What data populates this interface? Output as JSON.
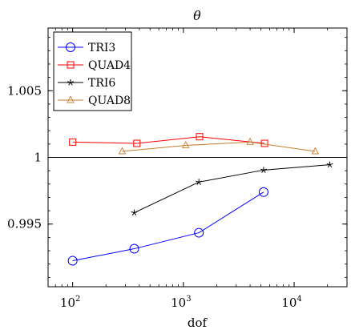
{
  "chart_data": {
    "type": "line",
    "title": "θ",
    "xlabel": "dof",
    "ylabel": "",
    "x_scale": "log",
    "xlim": [
      60,
      30000
    ],
    "ylim": [
      0.9903,
      1.0097
    ],
    "x_ticks": [
      {
        "value": 100,
        "base": "10",
        "exp": "2"
      },
      {
        "value": 1000,
        "base": "10",
        "exp": "3"
      },
      {
        "value": 10000,
        "base": "10",
        "exp": "4"
      }
    ],
    "y_ticks": [
      {
        "value": 0.995,
        "label": "0.995"
      },
      {
        "value": 1.0,
        "label": "1"
      },
      {
        "value": 1.005,
        "label": "1.005"
      }
    ],
    "reference_line": 1.0,
    "grid": false,
    "legend_position": "top-left",
    "series": [
      {
        "name": "TRI3",
        "color": "#0000ff",
        "marker": "circle",
        "x": [
          100,
          360,
          1380,
          5300
        ],
        "y": [
          0.99225,
          0.99315,
          0.99435,
          0.9974
        ]
      },
      {
        "name": "QUAD4",
        "color": "#ff0000",
        "marker": "square",
        "x": [
          100,
          380,
          1400,
          5400
        ],
        "y": [
          1.00115,
          1.00105,
          1.00155,
          1.00105
        ]
      },
      {
        "name": "TRI6",
        "color": "#000000",
        "marker": "star",
        "x": [
          360,
          1380,
          5300,
          21000
        ],
        "y": [
          0.99585,
          0.99815,
          0.99905,
          0.99945
        ]
      },
      {
        "name": "QUAD8",
        "color": "#c87c30",
        "marker": "triangle",
        "x": [
          280,
          1050,
          4000,
          15500
        ],
        "y": [
          1.00045,
          1.0009,
          1.00115,
          1.00045
        ]
      }
    ]
  }
}
